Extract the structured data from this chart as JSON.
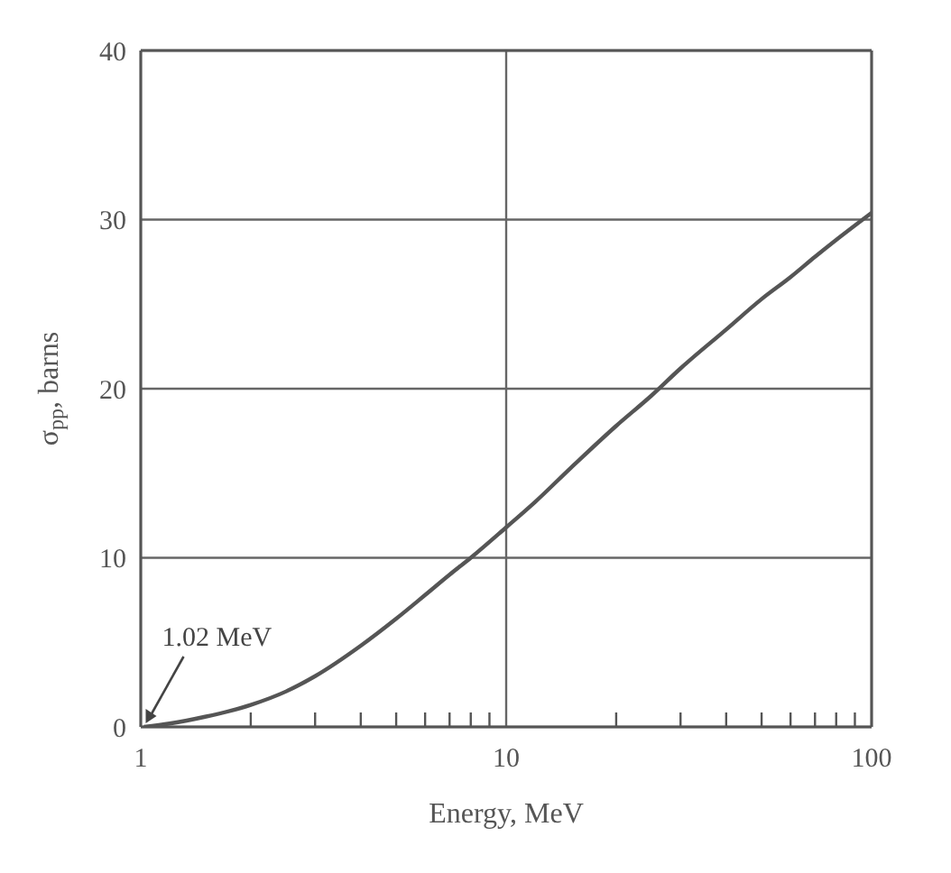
{
  "chart_data": {
    "type": "line",
    "xlabel": "Energy, MeV",
    "ylabel": "σ$_{pp}$, barns",
    "x": [
      1.02,
      1.2,
      1.5,
      2,
      2.5,
      3,
      4,
      5,
      6,
      7,
      8,
      10,
      12,
      15,
      20,
      25,
      30,
      40,
      50,
      60,
      70,
      80,
      100
    ],
    "series": [
      {
        "color": "#555555",
        "values": [
          0,
          0.2,
          0.6,
          1.3,
          2.1,
          3,
          4.8,
          6.4,
          7.8,
          9,
          10,
          11.8,
          13.3,
          15.3,
          17.8,
          19.6,
          21.2,
          23.5,
          25.3,
          26.6,
          27.8,
          28.8,
          30.4
        ]
      }
    ],
    "log": "x",
    "xlim": [
      1,
      100
    ],
    "ylim": [
      0,
      40
    ],
    "xticks": [
      1,
      {
        "value": 2,
        "label": null
      },
      {
        "value": 3,
        "label": null
      },
      {
        "value": 4,
        "label": null
      },
      {
        "value": 5,
        "label": null
      },
      {
        "value": 6,
        "label": null
      },
      {
        "value": 7,
        "label": null
      },
      {
        "value": 8,
        "label": null
      },
      {
        "value": 9,
        "label": null
      },
      10,
      {
        "value": 20,
        "label": null
      },
      {
        "value": 30,
        "label": null
      },
      {
        "value": 40,
        "label": null
      },
      {
        "value": 50,
        "label": null
      },
      {
        "value": 60,
        "label": null
      },
      {
        "value": 70,
        "label": null
      },
      {
        "value": 80,
        "label": null
      },
      {
        "value": 90,
        "label": null
      },
      100
    ],
    "yticks": [
      0,
      10,
      20,
      30,
      40
    ],
    "grid": true,
    "marker": "none",
    "line_style": "solid",
    "legend": false,
    "annotations": [
      {
        "text": "1.02 MeV",
        "x": 1.02,
        "y": 0
      }
    ]
  }
}
